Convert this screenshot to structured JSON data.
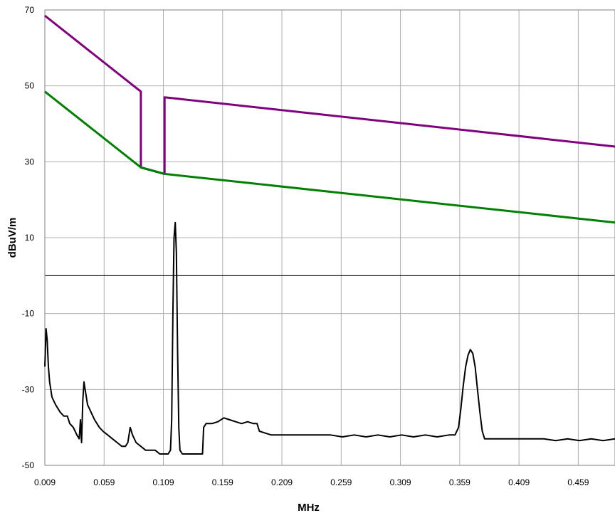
{
  "chart_data": {
    "type": "line",
    "title": "",
    "xlabel": "MHz",
    "ylabel": "dBuV/m",
    "xlim": [
      0.009,
      0.49
    ],
    "ylim": [
      -50,
      70
    ],
    "x_ticks": [
      0.009,
      0.059,
      0.109,
      0.159,
      0.209,
      0.259,
      0.309,
      0.359,
      0.409,
      0.459
    ],
    "x_tick_labels": [
      "0.009",
      "0.059",
      "0.109",
      "0.159",
      "0.209",
      "0.259",
      "0.309",
      "0.359",
      "0.409",
      "0.459"
    ],
    "y_ticks": [
      70,
      50,
      30,
      10,
      -10,
      -30,
      -50
    ],
    "y_tick_labels": [
      "70",
      "50",
      "30",
      "10",
      "-10",
      "-30",
      "-50"
    ],
    "zero_line": 0,
    "grid": true,
    "series": [
      {
        "color": "#800080",
        "points": [
          [
            0.009,
            68.5
          ],
          [
            0.09,
            48.5
          ],
          [
            0.09,
            28.5
          ],
          [
            0.11,
            26.8
          ],
          [
            0.11,
            47.0
          ],
          [
            0.49,
            34.0
          ]
        ]
      },
      {
        "color": "#0000ff",
        "points": [
          [
            0.09,
            28.5
          ],
          [
            0.11,
            26.8
          ]
        ]
      },
      {
        "color": "#008000",
        "points": [
          [
            0.009,
            48.5
          ],
          [
            0.09,
            28.5
          ],
          [
            0.11,
            26.8
          ],
          [
            0.49,
            14.0
          ]
        ]
      },
      {
        "color": "#000000",
        "points": [
          [
            0.009,
            -24
          ],
          [
            0.01,
            -14
          ],
          [
            0.011,
            -17
          ],
          [
            0.012,
            -24
          ],
          [
            0.013,
            -28
          ],
          [
            0.015,
            -32
          ],
          [
            0.018,
            -34
          ],
          [
            0.022,
            -36
          ],
          [
            0.025,
            -37
          ],
          [
            0.028,
            -37
          ],
          [
            0.03,
            -39
          ],
          [
            0.033,
            -40
          ],
          [
            0.036,
            -42
          ],
          [
            0.038,
            -43
          ],
          [
            0.039,
            -38
          ],
          [
            0.04,
            -44
          ],
          [
            0.041,
            -33
          ],
          [
            0.042,
            -28
          ],
          [
            0.043,
            -30
          ],
          [
            0.045,
            -34
          ],
          [
            0.048,
            -36
          ],
          [
            0.051,
            -38
          ],
          [
            0.055,
            -40
          ],
          [
            0.058,
            -41
          ],
          [
            0.062,
            -42
          ],
          [
            0.066,
            -43
          ],
          [
            0.07,
            -44
          ],
          [
            0.074,
            -45
          ],
          [
            0.077,
            -45
          ],
          [
            0.079,
            -44
          ],
          [
            0.081,
            -40
          ],
          [
            0.083,
            -42
          ],
          [
            0.086,
            -44
          ],
          [
            0.09,
            -45
          ],
          [
            0.094,
            -46
          ],
          [
            0.098,
            -46
          ],
          [
            0.102,
            -46
          ],
          [
            0.106,
            -47
          ],
          [
            0.11,
            -47
          ],
          [
            0.113,
            -47
          ],
          [
            0.115,
            -46
          ],
          [
            0.116,
            -38
          ],
          [
            0.117,
            -10
          ],
          [
            0.118,
            10
          ],
          [
            0.119,
            14
          ],
          [
            0.12,
            6
          ],
          [
            0.121,
            -20
          ],
          [
            0.122,
            -40
          ],
          [
            0.123,
            -46
          ],
          [
            0.125,
            -47
          ],
          [
            0.13,
            -47
          ],
          [
            0.135,
            -47
          ],
          [
            0.14,
            -47
          ],
          [
            0.142,
            -47
          ],
          [
            0.143,
            -40
          ],
          [
            0.145,
            -39
          ],
          [
            0.15,
            -39
          ],
          [
            0.155,
            -38.5
          ],
          [
            0.16,
            -37.5
          ],
          [
            0.165,
            -38
          ],
          [
            0.17,
            -38.5
          ],
          [
            0.175,
            -39
          ],
          [
            0.18,
            -38.5
          ],
          [
            0.185,
            -39
          ],
          [
            0.188,
            -39
          ],
          [
            0.19,
            -41
          ],
          [
            0.195,
            -41.5
          ],
          [
            0.2,
            -42
          ],
          [
            0.21,
            -42
          ],
          [
            0.22,
            -42
          ],
          [
            0.23,
            -42
          ],
          [
            0.24,
            -42
          ],
          [
            0.25,
            -42
          ],
          [
            0.26,
            -42.5
          ],
          [
            0.27,
            -42
          ],
          [
            0.28,
            -42.5
          ],
          [
            0.29,
            -42
          ],
          [
            0.3,
            -42.5
          ],
          [
            0.31,
            -42
          ],
          [
            0.32,
            -42.5
          ],
          [
            0.33,
            -42
          ],
          [
            0.34,
            -42.5
          ],
          [
            0.35,
            -42
          ],
          [
            0.355,
            -42
          ],
          [
            0.358,
            -40
          ],
          [
            0.36,
            -35
          ],
          [
            0.362,
            -29
          ],
          [
            0.364,
            -24
          ],
          [
            0.366,
            -21
          ],
          [
            0.368,
            -19.5
          ],
          [
            0.37,
            -20.5
          ],
          [
            0.372,
            -24
          ],
          [
            0.374,
            -30
          ],
          [
            0.376,
            -36
          ],
          [
            0.378,
            -41
          ],
          [
            0.38,
            -43
          ],
          [
            0.39,
            -43
          ],
          [
            0.4,
            -43
          ],
          [
            0.41,
            -43
          ],
          [
            0.42,
            -43
          ],
          [
            0.43,
            -43
          ],
          [
            0.44,
            -43.5
          ],
          [
            0.45,
            -43
          ],
          [
            0.46,
            -43.5
          ],
          [
            0.47,
            -43
          ],
          [
            0.48,
            -43.5
          ],
          [
            0.49,
            -43
          ]
        ]
      }
    ]
  }
}
